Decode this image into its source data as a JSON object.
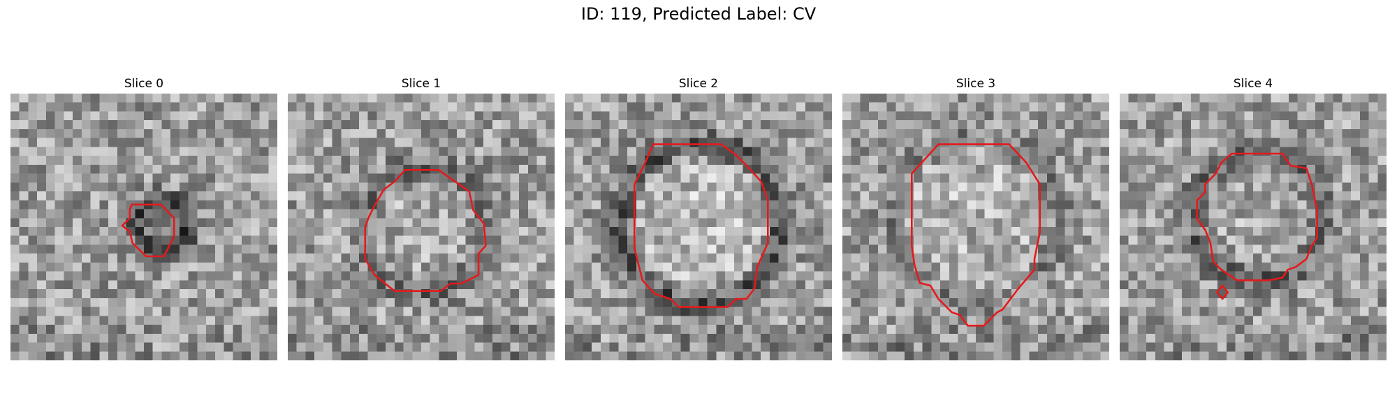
{
  "figure": {
    "title": "ID: 119, Predicted Label: CV"
  },
  "contour_color": "#e41a1c",
  "panels": [
    {
      "title": "Slice 0",
      "contours": [
        [
          [
            0.455,
            0.416
          ],
          [
            0.565,
            0.416
          ],
          [
            0.613,
            0.467
          ],
          [
            0.613,
            0.537
          ],
          [
            0.575,
            0.61
          ],
          [
            0.508,
            0.61
          ],
          [
            0.457,
            0.56
          ],
          [
            0.447,
            0.518
          ],
          [
            0.419,
            0.495
          ],
          [
            0.447,
            0.467
          ],
          [
            0.447,
            0.435
          ]
        ]
      ]
    },
    {
      "title": "Slice 1",
      "contours": [
        [
          [
            0.44,
            0.286
          ],
          [
            0.565,
            0.286
          ],
          [
            0.68,
            0.367
          ],
          [
            0.695,
            0.437
          ],
          [
            0.735,
            0.488
          ],
          [
            0.742,
            0.57
          ],
          [
            0.715,
            0.6
          ],
          [
            0.715,
            0.68
          ],
          [
            0.65,
            0.712
          ],
          [
            0.61,
            0.712
          ],
          [
            0.573,
            0.74
          ],
          [
            0.4,
            0.74
          ],
          [
            0.325,
            0.68
          ],
          [
            0.29,
            0.62
          ],
          [
            0.29,
            0.5
          ],
          [
            0.305,
            0.46
          ],
          [
            0.325,
            0.42
          ],
          [
            0.36,
            0.36
          ],
          [
            0.4,
            0.33
          ]
        ]
      ]
    },
    {
      "title": "Slice 2",
      "contours": [
        [
          [
            0.33,
            0.19
          ],
          [
            0.585,
            0.19
          ],
          [
            0.64,
            0.23
          ],
          [
            0.68,
            0.27
          ],
          [
            0.735,
            0.33
          ],
          [
            0.76,
            0.4
          ],
          [
            0.76,
            0.56
          ],
          [
            0.72,
            0.65
          ],
          [
            0.71,
            0.73
          ],
          [
            0.68,
            0.77
          ],
          [
            0.64,
            0.77
          ],
          [
            0.61,
            0.8
          ],
          [
            0.425,
            0.8
          ],
          [
            0.395,
            0.77
          ],
          [
            0.335,
            0.75
          ],
          [
            0.29,
            0.7
          ],
          [
            0.27,
            0.62
          ],
          [
            0.26,
            0.58
          ],
          [
            0.26,
            0.34
          ],
          [
            0.3,
            0.26
          ]
        ]
      ]
    },
    {
      "title": "Slice 3",
      "contours": [
        [
          [
            0.36,
            0.19
          ],
          [
            0.625,
            0.19
          ],
          [
            0.69,
            0.26
          ],
          [
            0.74,
            0.34
          ],
          [
            0.74,
            0.52
          ],
          [
            0.72,
            0.62
          ],
          [
            0.72,
            0.66
          ],
          [
            0.66,
            0.73
          ],
          [
            0.6,
            0.81
          ],
          [
            0.58,
            0.82
          ],
          [
            0.53,
            0.87
          ],
          [
            0.47,
            0.87
          ],
          [
            0.44,
            0.83
          ],
          [
            0.41,
            0.82
          ],
          [
            0.36,
            0.77
          ],
          [
            0.33,
            0.72
          ],
          [
            0.29,
            0.71
          ],
          [
            0.27,
            0.64
          ],
          [
            0.26,
            0.57
          ],
          [
            0.26,
            0.3
          ]
        ]
      ]
    },
    {
      "title": "Slice 4",
      "contours": [
        [
          [
            0.42,
            0.225
          ],
          [
            0.61,
            0.225
          ],
          [
            0.64,
            0.27
          ],
          [
            0.7,
            0.28
          ],
          [
            0.72,
            0.34
          ],
          [
            0.74,
            0.44
          ],
          [
            0.74,
            0.54
          ],
          [
            0.72,
            0.57
          ],
          [
            0.7,
            0.62
          ],
          [
            0.66,
            0.65
          ],
          [
            0.63,
            0.66
          ],
          [
            0.61,
            0.69
          ],
          [
            0.56,
            0.7
          ],
          [
            0.44,
            0.7
          ],
          [
            0.38,
            0.66
          ],
          [
            0.35,
            0.63
          ],
          [
            0.34,
            0.56
          ],
          [
            0.32,
            0.51
          ],
          [
            0.29,
            0.47
          ],
          [
            0.29,
            0.4
          ],
          [
            0.32,
            0.37
          ],
          [
            0.32,
            0.34
          ],
          [
            0.36,
            0.3
          ],
          [
            0.38,
            0.26
          ]
        ],
        [
          [
            0.385,
            0.72
          ],
          [
            0.405,
            0.745
          ],
          [
            0.385,
            0.77
          ],
          [
            0.365,
            0.745
          ]
        ]
      ]
    }
  ]
}
